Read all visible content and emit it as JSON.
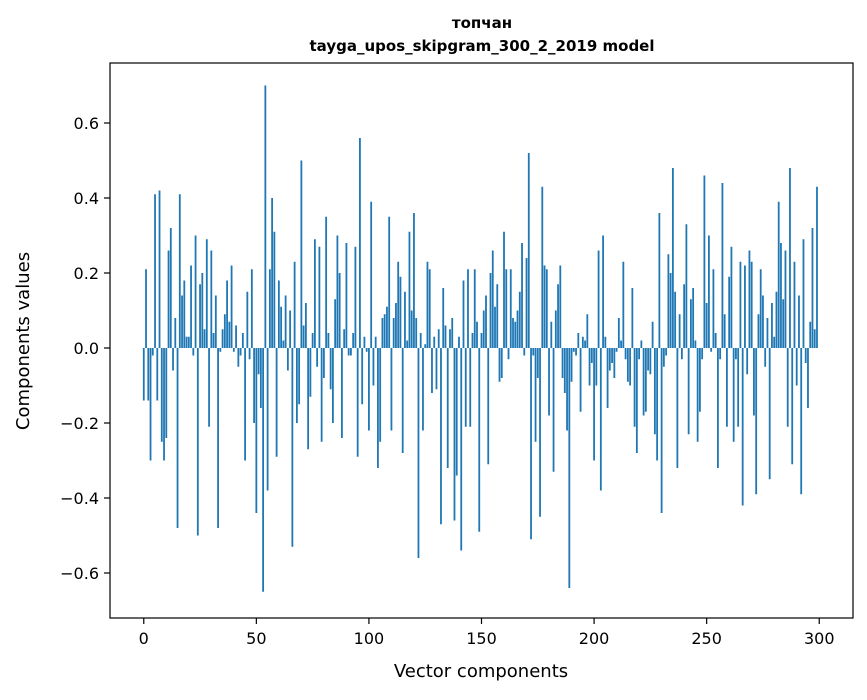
{
  "chart_data": {
    "type": "bar",
    "title": "топчан",
    "subtitle": "tayga_upos_skipgram_300_2_2019 model",
    "xlabel": "Vector components",
    "ylabel": "Components values",
    "xlim": [
      -15,
      315
    ],
    "ylim": [
      -0.72,
      0.76
    ],
    "xticks": [
      0,
      50,
      100,
      150,
      200,
      250,
      300
    ],
    "yticks": [
      -0.6,
      -0.4,
      -0.2,
      0.0,
      0.2,
      0.4,
      0.6
    ],
    "ytick_labels": [
      "−0.6",
      "−0.4",
      "−0.2",
      "0.0",
      "0.2",
      "0.4",
      "0.6"
    ],
    "grid": false,
    "bar_color": "#1f77b4",
    "values": [
      -0.14,
      0.21,
      -0.14,
      -0.3,
      -0.02,
      0.41,
      -0.14,
      0.42,
      -0.25,
      -0.3,
      -0.24,
      0.26,
      0.32,
      -0.06,
      0.08,
      -0.48,
      0.41,
      0.14,
      0.18,
      0.03,
      0.03,
      0.22,
      -0.02,
      0.3,
      -0.5,
      0.17,
      0.2,
      0.05,
      0.29,
      -0.21,
      0.26,
      0.04,
      0.14,
      -0.48,
      -0.01,
      0.05,
      0.09,
      0.18,
      0.07,
      0.22,
      -0.01,
      0.06,
      -0.05,
      -0.02,
      0.04,
      -0.3,
      0.15,
      -0.03,
      0.21,
      -0.2,
      -0.44,
      -0.07,
      -0.16,
      -0.65,
      0.7,
      -0.38,
      0.21,
      0.4,
      0.31,
      -0.29,
      0.18,
      0.11,
      0.02,
      0.14,
      -0.06,
      0.1,
      -0.53,
      0.23,
      -0.2,
      -0.15,
      0.5,
      0.06,
      0.12,
      -0.27,
      -0.13,
      0.04,
      0.29,
      -0.05,
      0.27,
      -0.25,
      -0.08,
      0.35,
      0.04,
      -0.11,
      -0.2,
      0.13,
      0.3,
      0.2,
      -0.24,
      0.05,
      0.28,
      -0.02,
      -0.02,
      0.04,
      0.27,
      -0.29,
      0.56,
      -0.15,
      0.03,
      -0.01,
      -0.22,
      0.39,
      -0.1,
      0.03,
      -0.32,
      -0.25,
      0.08,
      0.09,
      0.11,
      0.35,
      -0.22,
      0.08,
      0.12,
      0.23,
      0.19,
      -0.28,
      0.15,
      0.02,
      0.31,
      0.1,
      0.36,
      0.08,
      -0.56,
      0.04,
      -0.22,
      0.01,
      0.23,
      0.21,
      -0.12,
      0.03,
      -0.11,
      0.05,
      -0.47,
      0.16,
      0.06,
      -0.32,
      0.05,
      0.08,
      -0.46,
      -0.34,
      0.03,
      -0.54,
      0.18,
      -0.21,
      0.21,
      -0.21,
      0.04,
      0.21,
      0.07,
      -0.49,
      0.04,
      0.1,
      0.14,
      -0.31,
      0.2,
      0.26,
      0.11,
      0.17,
      -0.09,
      -0.08,
      0.31,
      0.21,
      -0.03,
      0.21,
      0.08,
      0.07,
      0.1,
      0.15,
      0.28,
      -0.02,
      0.24,
      0.52,
      -0.51,
      -0.02,
      -0.25,
      -0.08,
      -0.45,
      0.43,
      0.22,
      0.21,
      -0.18,
      0.07,
      -0.33,
      0.1,
      0.17,
      0.22,
      -0.08,
      -0.12,
      -0.22,
      -0.64,
      -0.09,
      -0.01,
      -0.02,
      0.04,
      -0.17,
      0.03,
      0.02,
      0.09,
      -0.1,
      -0.04,
      -0.3,
      -0.1,
      0.26,
      -0.38,
      0.3,
      0.03,
      -0.16,
      -0.06,
      -0.04,
      -0.08,
      -0.01,
      0.08,
      0.02,
      0.23,
      -0.03,
      -0.09,
      -0.1,
      0.16,
      -0.21,
      -0.28,
      -0.03,
      0.02,
      -0.18,
      -0.17,
      -0.06,
      -0.07,
      0.07,
      -0.23,
      -0.3,
      0.36,
      -0.44,
      -0.05,
      -0.02,
      0.25,
      0.2,
      0.48,
      0.15,
      -0.32,
      0.09,
      -0.03,
      0.17,
      0.33,
      -0.23,
      0.13,
      0.16,
      0.02,
      -0.25,
      -0.17,
      -0.03,
      0.46,
      0.12,
      0.3,
      -0.01,
      0.21,
      0.04,
      -0.32,
      -0.03,
      0.44,
      0.09,
      -0.21,
      0.19,
      0.27,
      -0.25,
      -0.03,
      -0.21,
      0.23,
      -0.42,
      0.22,
      -0.07,
      0.26,
      0.23,
      -0.18,
      -0.39,
      0.09,
      0.21,
      0.14,
      -0.05,
      0.08,
      -0.35,
      0.12,
      0.03,
      0.15,
      0.39,
      0.28,
      0.13,
      0.26,
      -0.21,
      0.48,
      -0.31,
      0.23,
      -0.1,
      0.14,
      -0.39,
      0.29,
      -0.04,
      -0.16,
      0.07,
      0.32,
      0.05,
      0.43
    ]
  }
}
